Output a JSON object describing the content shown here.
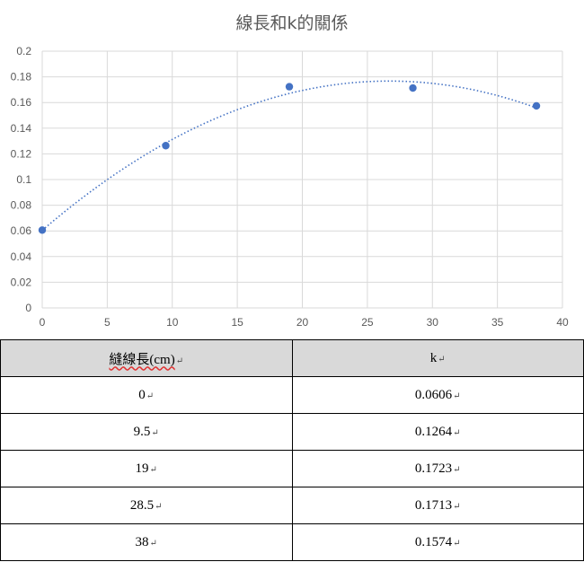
{
  "chart_data": {
    "type": "scatter",
    "title": "線長和k的關係",
    "x": [
      0,
      9.5,
      19,
      28.5,
      38
    ],
    "y": [
      0.0606,
      0.1264,
      0.1723,
      0.1713,
      0.1574
    ],
    "xlim": [
      0,
      40
    ],
    "ylim": [
      0,
      0.2
    ],
    "x_ticks": [
      "0",
      "5",
      "10",
      "15",
      "20",
      "25",
      "30",
      "35",
      "40"
    ],
    "y_ticks": [
      "0",
      "0.02",
      "0.04",
      "0.06",
      "0.08",
      "0.1",
      "0.12",
      "0.14",
      "0.16",
      "0.18",
      "0.2"
    ],
    "trendline": "polynomial-2",
    "grid": true,
    "legend": "none",
    "colors": {
      "marker": "#4472c4",
      "trendline": "#4472c4",
      "grid": "#d9d9d9"
    }
  },
  "table": {
    "headers": [
      "縫線長(cm)",
      "k"
    ],
    "rows": [
      [
        "0",
        "0.0606"
      ],
      [
        "9.5",
        "0.1264"
      ],
      [
        "19",
        "0.1723"
      ],
      [
        "28.5",
        "0.1713"
      ],
      [
        "38",
        "0.1574"
      ]
    ],
    "cell_mark": "↵"
  }
}
